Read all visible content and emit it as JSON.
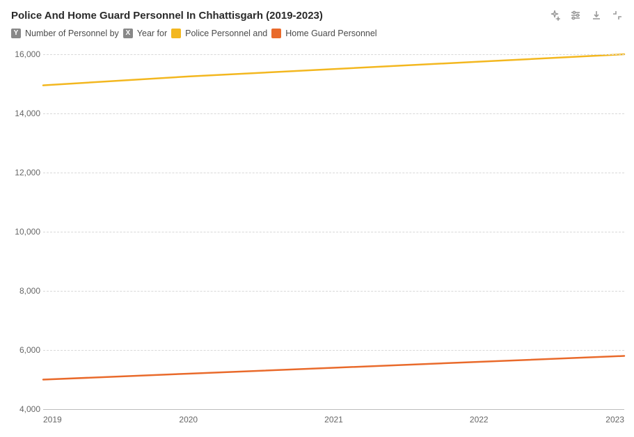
{
  "title": "Police And Home Guard Personnel In Chhattisgarh (2019-2023)",
  "legend": {
    "y_badge": "Y",
    "y_text": "Number of Personnel by",
    "x_badge": "X",
    "x_text": "Year for",
    "series1_label": "Police Personnel and",
    "series2_label": "Home Guard Personnel"
  },
  "chart": {
    "type": "line",
    "x": {
      "values": [
        2019,
        2020,
        2021,
        2022,
        2023
      ],
      "labels": [
        "2019",
        "2020",
        "2021",
        "2022",
        "2023"
      ]
    },
    "y": {
      "min": 4000,
      "max": 16000,
      "tick_step": 2000,
      "labels": [
        "4,000",
        "6,000",
        "8,000",
        "10,000",
        "12,000",
        "14,000",
        "16,000"
      ]
    },
    "series": [
      {
        "name": "Police Personnel",
        "color": "#f3b71f",
        "width": 2.5,
        "values": [
          14950,
          15250,
          15500,
          15750,
          16000
        ]
      },
      {
        "name": "Home Guard Personnel",
        "color": "#e96a2b",
        "width": 2.5,
        "values": [
          5000,
          5200,
          5400,
          5600,
          5800
        ]
      }
    ],
    "grid_color": "#d8d8d8",
    "baseline_color": "#bcbcbc",
    "background_color": "#ffffff",
    "title_fontsize": 15,
    "label_fontsize": 12
  },
  "toolbar": {
    "icons": [
      "sparkle-icon",
      "settings-icon",
      "download-icon",
      "collapse-icon"
    ]
  }
}
